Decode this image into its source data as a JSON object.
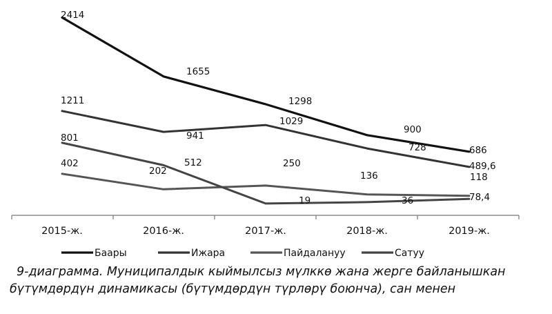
{
  "chart_data": {
    "type": "line",
    "categories": [
      "2015-ж.",
      "2016-ж.",
      "2017-ж.",
      "2018-ж.",
      "2019-ж."
    ],
    "series": [
      {
        "name": "Баары",
        "values": [
          2414,
          1655,
          1298,
          900,
          686
        ],
        "labels": [
          "2414",
          "1655",
          "1298",
          "900",
          "686"
        ],
        "color": "#111111",
        "width": 3.2
      },
      {
        "name": "Ижара",
        "values": [
          1211,
          941,
          1029,
          728,
          489.6
        ],
        "labels": [
          "1211",
          "941",
          "1029",
          "728",
          "489,6"
        ],
        "color": "#333333",
        "width": 3
      },
      {
        "name": "Пайдалануу",
        "values": [
          402,
          202,
          250,
          136,
          118
        ],
        "labels": [
          "402",
          "202",
          "250",
          "136",
          "118"
        ],
        "color": "#555555",
        "width": 3
      },
      {
        "name": "Сатуу",
        "values": [
          801,
          512,
          19,
          36,
          78.4
        ],
        "labels": [
          "801",
          "512",
          "19",
          "36",
          "78,4"
        ],
        "color": "#444444",
        "width": 3
      }
    ],
    "ylim": [
      0,
      2500
    ],
    "grid": false,
    "legend_position": "bottom",
    "caption_line1": "9-диаграмма. Муниципалдык кыймылсыз мүлккө жана жерге байланышкан",
    "caption_line2": "бүтүмдөрдүн динамикасы (бүтүмдөрдүн түрлөрү боюнча), сан менен"
  }
}
